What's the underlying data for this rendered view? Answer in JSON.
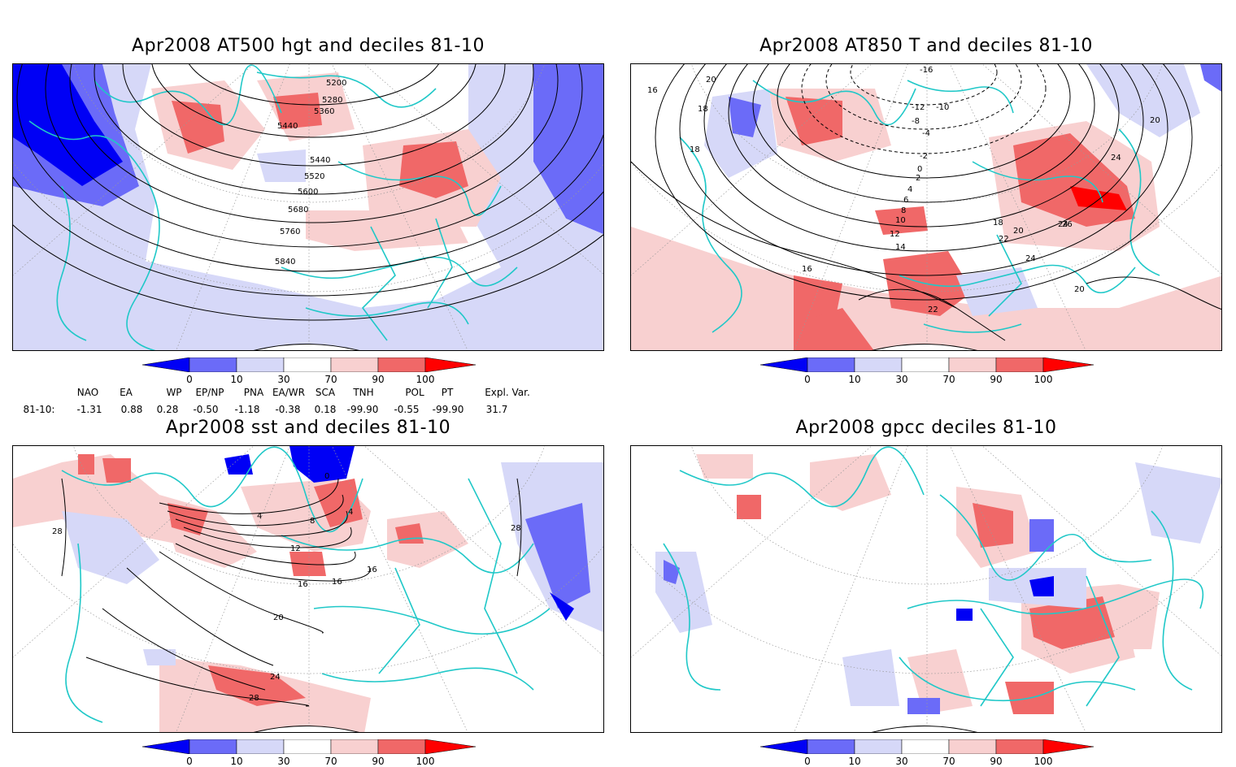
{
  "colors": {
    "dark_blue": "#0000f5",
    "mid_blue": "#6b6bf8",
    "light_blue": "#d6d8f8",
    "light_red": "#f8d0d0",
    "mid_red": "#f06868",
    "dark_red": "#ff0000",
    "coast": "#20c8c8",
    "contour": "#000000"
  },
  "panels": [
    {
      "id": "at500",
      "title": "Apr2008 AT500 hgt and deciles 81-10",
      "contour_labels": [
        "5200",
        "5280",
        "5360",
        "5440",
        "5440",
        "5520",
        "5600",
        "5680",
        "5760",
        "5840"
      ]
    },
    {
      "id": "at850",
      "title": "Apr2008 AT850 T and deciles 81-10",
      "contour_labels": [
        "-16",
        "-12",
        "-10",
        "-8",
        "-4",
        "-2",
        "0",
        "2",
        "4",
        "6",
        "8",
        "10",
        "12",
        "14",
        "16",
        "16",
        "18",
        "18",
        "18",
        "20",
        "20",
        "20",
        "20",
        "22",
        "22",
        "24",
        "24",
        "24",
        "26"
      ]
    },
    {
      "id": "sst",
      "title": "Apr2008 sst and deciles 81-10",
      "contour_labels": [
        "0",
        "4",
        "4",
        "8",
        "12",
        "16",
        "16",
        "16",
        "20",
        "24",
        "28",
        "28",
        "28"
      ]
    },
    {
      "id": "gpcc",
      "title": "Apr2008 gpcc deciles 81-10",
      "contour_labels": []
    }
  ],
  "colorbar": {
    "labels": [
      "0",
      "10",
      "30",
      "70",
      "90",
      "100"
    ]
  },
  "indices": {
    "headers": [
      "NAO",
      "EA",
      "WP",
      "EP/NP",
      "PNA",
      "EA/WR",
      "SCA",
      "TNH",
      "POL",
      "PT",
      "Expl. Var."
    ],
    "row_label": "81-10:",
    "values": [
      "-1.31",
      "0.88",
      "0.28",
      "-0.50",
      "-1.18",
      "-0.38",
      "0.18",
      "-99.90",
      "-0.55",
      "-99.90",
      "31.7"
    ]
  }
}
